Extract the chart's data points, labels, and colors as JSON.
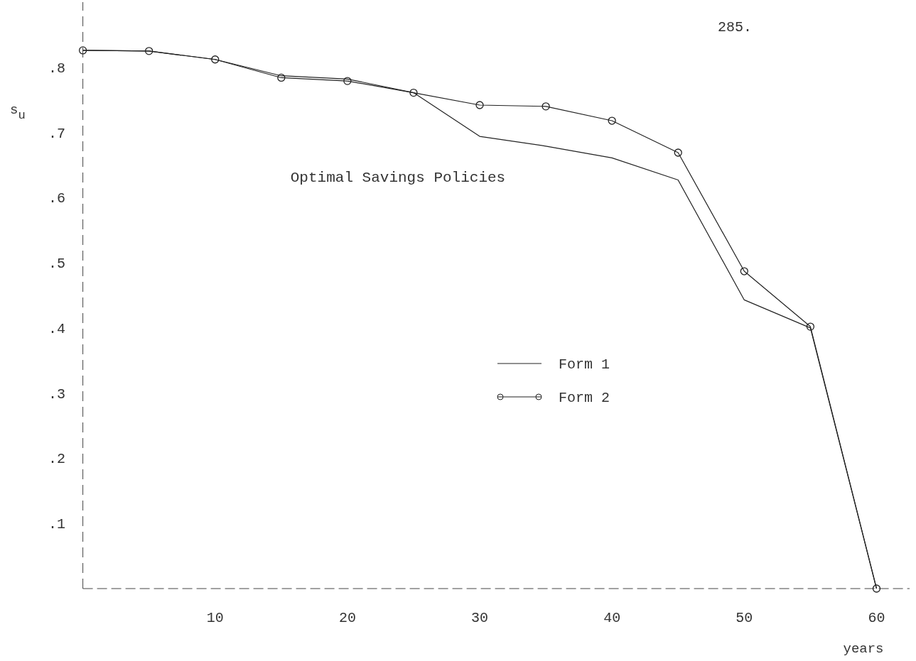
{
  "chart_data": {
    "type": "line",
    "title": "Optimal Savings Policies",
    "xlabel": "years",
    "ylabel": "s$_{u}$",
    "annotations": [
      "285."
    ],
    "x": [
      0,
      5,
      10,
      15,
      20,
      25,
      30,
      35,
      40,
      45,
      50,
      55,
      60
    ],
    "series": [
      {
        "name": "Form 1",
        "color": "#222222",
        "marker": "none",
        "values": [
          0.826,
          0.825,
          0.812,
          0.787,
          0.782,
          0.761,
          0.694,
          0.679,
          0.661,
          0.627,
          0.443,
          0.4,
          0
        ]
      },
      {
        "name": "Form 2",
        "color": "#222222",
        "marker": "circle",
        "values": [
          0.826,
          0.825,
          0.812,
          0.784,
          0.779,
          0.761,
          0.742,
          0.74,
          0.718,
          0.669,
          0.487,
          0.402,
          0
        ]
      }
    ],
    "xlim": [
      0,
      62.5
    ],
    "ylim": [
      0,
      0.9
    ],
    "xticks": [
      10,
      20,
      30,
      40,
      50,
      60
    ],
    "yticks": [
      {
        "value": 0.1,
        "label": ".1"
      },
      {
        "value": 0.2,
        "label": ".2"
      },
      {
        "value": 0.3,
        "label": ".3"
      },
      {
        "value": 0.4,
        "label": ".4"
      },
      {
        "value": 0.5,
        "label": ".5"
      },
      {
        "value": 0.6,
        "label": ".6"
      },
      {
        "value": 0.7,
        "label": ".7"
      },
      {
        "value": 0.8,
        "label": ".8"
      }
    ],
    "grid": false,
    "legend": "right",
    "line_style": "solid"
  }
}
